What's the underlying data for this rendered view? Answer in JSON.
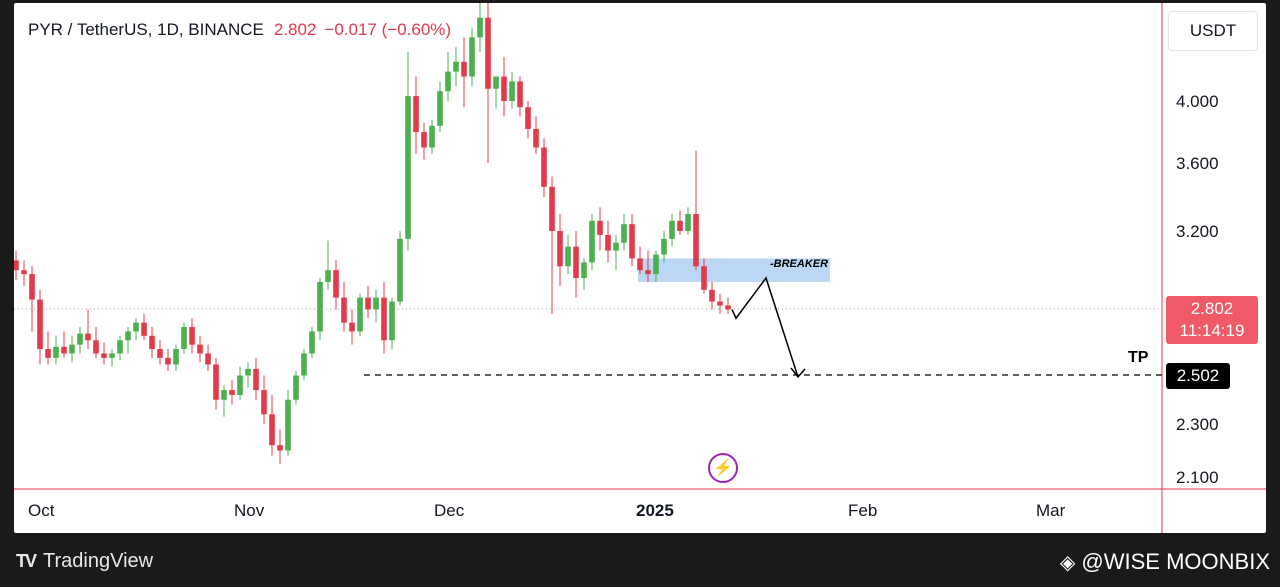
{
  "header": {
    "symbol": "PYR / TetherUS, 1D, BINANCE",
    "price": "2.802",
    "change": "−0.017 (−0.60%)"
  },
  "currency": "USDT",
  "y_axis": {
    "ticks": [
      "4.000",
      "3.600",
      "3.200",
      "2.300",
      "2.100"
    ]
  },
  "x_axis": {
    "ticks": [
      "Oct",
      "Nov",
      "Dec",
      "2025",
      "Feb",
      "Mar"
    ]
  },
  "last_price": {
    "value": "2.802",
    "countdown": "11:14:19"
  },
  "target": {
    "label": "TP",
    "value": "2.502"
  },
  "zone": {
    "label": "-BREAKER"
  },
  "footer": {
    "brand": "TradingView",
    "watermark": "@WISE MOONBIX"
  },
  "colors": {
    "up": "#26a69a",
    "up_green": "#4caf50",
    "down": "#e03b4a",
    "zone": "#bbd7f5"
  },
  "chart_data": {
    "type": "candlestick",
    "title": "PYR / TetherUS, 1D, BINANCE",
    "ylim": [
      2.1,
      4.4
    ],
    "candles": [
      [
        3.05,
        3.1,
        2.95,
        3.0
      ],
      [
        3.0,
        3.05,
        2.92,
        2.98
      ],
      [
        2.98,
        3.02,
        2.7,
        2.85
      ],
      [
        2.85,
        2.9,
        2.55,
        2.62
      ],
      [
        2.62,
        2.7,
        2.55,
        2.58
      ],
      [
        2.58,
        2.68,
        2.55,
        2.63
      ],
      [
        2.63,
        2.7,
        2.58,
        2.6
      ],
      [
        2.6,
        2.68,
        2.56,
        2.64
      ],
      [
        2.64,
        2.72,
        2.6,
        2.69
      ],
      [
        2.69,
        2.8,
        2.62,
        2.66
      ],
      [
        2.66,
        2.72,
        2.58,
        2.6
      ],
      [
        2.6,
        2.65,
        2.55,
        2.58
      ],
      [
        2.58,
        2.62,
        2.54,
        2.6
      ],
      [
        2.6,
        2.68,
        2.57,
        2.66
      ],
      [
        2.66,
        2.72,
        2.6,
        2.7
      ],
      [
        2.7,
        2.76,
        2.66,
        2.74
      ],
      [
        2.74,
        2.78,
        2.66,
        2.68
      ],
      [
        2.68,
        2.72,
        2.58,
        2.62
      ],
      [
        2.62,
        2.66,
        2.55,
        2.58
      ],
      [
        2.58,
        2.62,
        2.52,
        2.55
      ],
      [
        2.55,
        2.64,
        2.52,
        2.62
      ],
      [
        2.62,
        2.74,
        2.6,
        2.72
      ],
      [
        2.72,
        2.76,
        2.6,
        2.64
      ],
      [
        2.64,
        2.68,
        2.56,
        2.6
      ],
      [
        2.6,
        2.64,
        2.52,
        2.55
      ],
      [
        2.55,
        2.58,
        2.36,
        2.4
      ],
      [
        2.4,
        2.46,
        2.33,
        2.44
      ],
      [
        2.44,
        2.48,
        2.38,
        2.42
      ],
      [
        2.42,
        2.54,
        2.4,
        2.5
      ],
      [
        2.5,
        2.56,
        2.45,
        2.53
      ],
      [
        2.53,
        2.58,
        2.4,
        2.44
      ],
      [
        2.44,
        2.5,
        2.3,
        2.34
      ],
      [
        2.34,
        2.42,
        2.18,
        2.22
      ],
      [
        2.22,
        2.28,
        2.15,
        2.2
      ],
      [
        2.2,
        2.44,
        2.18,
        2.4
      ],
      [
        2.4,
        2.52,
        2.38,
        2.5
      ],
      [
        2.5,
        2.62,
        2.48,
        2.6
      ],
      [
        2.6,
        2.72,
        2.58,
        2.7
      ],
      [
        2.7,
        2.96,
        2.66,
        2.94
      ],
      [
        2.94,
        3.15,
        2.9,
        3.0
      ],
      [
        3.0,
        3.05,
        2.8,
        2.86
      ],
      [
        2.86,
        2.94,
        2.7,
        2.74
      ],
      [
        2.74,
        2.8,
        2.64,
        2.7
      ],
      [
        2.7,
        2.88,
        2.68,
        2.86
      ],
      [
        2.86,
        2.92,
        2.76,
        2.8
      ],
      [
        2.8,
        2.9,
        2.74,
        2.86
      ],
      [
        2.86,
        2.94,
        2.6,
        2.66
      ],
      [
        2.66,
        2.86,
        2.62,
        2.84
      ],
      [
        2.84,
        3.2,
        2.82,
        3.16
      ],
      [
        3.16,
        4.2,
        3.1,
        4.02
      ],
      [
        4.02,
        4.1,
        3.66,
        3.8
      ],
      [
        3.8,
        3.86,
        3.62,
        3.7
      ],
      [
        3.7,
        3.88,
        3.66,
        3.84
      ],
      [
        3.84,
        4.08,
        3.8,
        4.04
      ],
      [
        4.04,
        4.2,
        4.0,
        4.12
      ],
      [
        4.12,
        4.22,
        4.06,
        4.16
      ],
      [
        4.16,
        4.26,
        3.96,
        4.1
      ],
      [
        4.1,
        4.3,
        4.06,
        4.26
      ],
      [
        4.26,
        4.4,
        4.2,
        4.34
      ],
      [
        4.34,
        4.4,
        3.6,
        4.05
      ],
      [
        4.05,
        4.1,
        3.95,
        4.1
      ],
      [
        4.1,
        4.18,
        3.9,
        4.0
      ],
      [
        4.0,
        4.12,
        3.95,
        4.08
      ],
      [
        4.08,
        4.1,
        3.9,
        3.96
      ],
      [
        3.96,
        4.0,
        3.76,
        3.82
      ],
      [
        3.82,
        3.9,
        3.66,
        3.7
      ],
      [
        3.7,
        3.76,
        3.4,
        3.46
      ],
      [
        3.46,
        3.52,
        2.78,
        3.2
      ],
      [
        3.2,
        3.3,
        2.92,
        3.02
      ],
      [
        3.02,
        3.18,
        2.98,
        3.12
      ],
      [
        3.12,
        3.2,
        2.86,
        2.96
      ],
      [
        2.96,
        3.06,
        2.9,
        3.04
      ],
      [
        3.04,
        3.3,
        3.0,
        3.26
      ],
      [
        3.26,
        3.34,
        3.1,
        3.18
      ],
      [
        3.18,
        3.26,
        3.04,
        3.1
      ],
      [
        3.1,
        3.18,
        3.0,
        3.14
      ],
      [
        3.14,
        3.3,
        3.1,
        3.24
      ],
      [
        3.24,
        3.3,
        3.02,
        3.06
      ],
      [
        3.06,
        3.12,
        2.98,
        3.0
      ],
      [
        3.0,
        3.1,
        2.94,
        2.98
      ],
      [
        2.98,
        3.1,
        2.94,
        3.08
      ],
      [
        3.08,
        3.2,
        3.04,
        3.16
      ],
      [
        3.16,
        3.3,
        3.12,
        3.26
      ],
      [
        3.26,
        3.32,
        3.18,
        3.2
      ],
      [
        3.2,
        3.34,
        3.18,
        3.3
      ],
      [
        3.3,
        3.68,
        3.0,
        3.02
      ],
      [
        3.02,
        3.06,
        2.88,
        2.9
      ],
      [
        2.9,
        2.94,
        2.8,
        2.84
      ],
      [
        2.84,
        2.88,
        2.78,
        2.82
      ],
      [
        2.82,
        2.86,
        2.78,
        2.8
      ]
    ],
    "zone": {
      "label": "-BREAKER",
      "y_range": [
        2.94,
        3.06
      ]
    },
    "target": {
      "label": "TP",
      "value": 2.502
    }
  }
}
